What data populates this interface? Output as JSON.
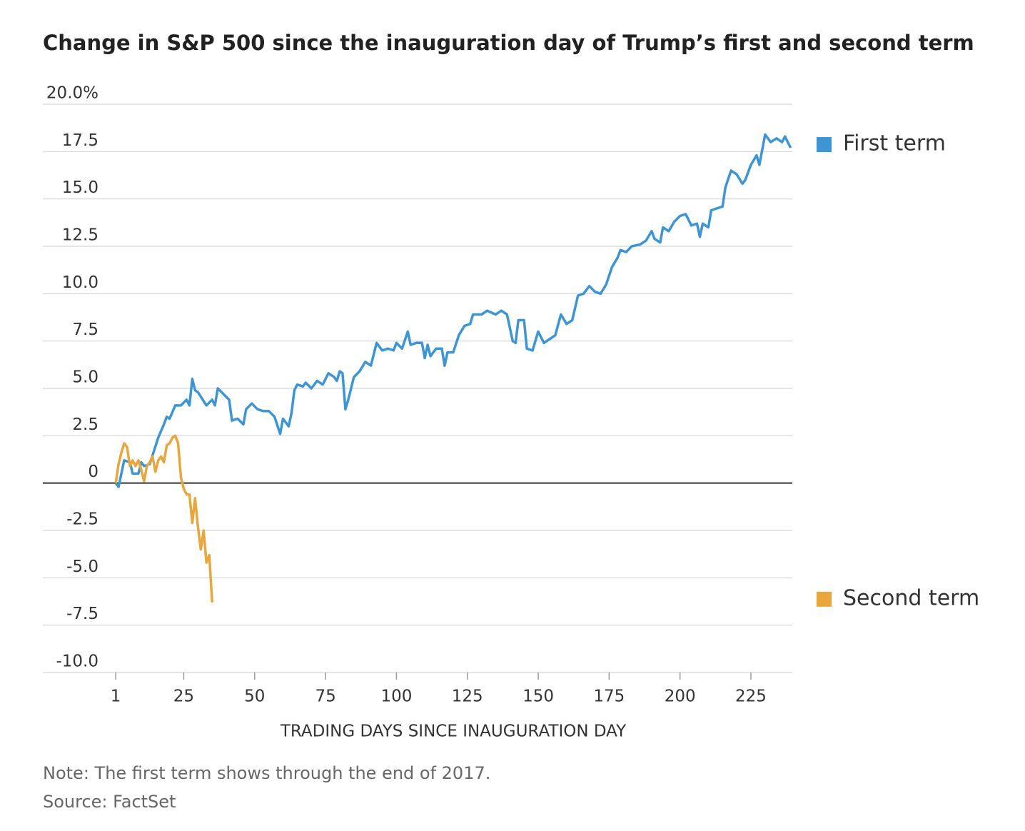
{
  "chart_data": {
    "type": "line",
    "title": "Change in S&P 500 since the inauguration day of Trump’s first and second term",
    "x_label": "TRADING DAYS SINCE INAUGURATION DAY",
    "note": "Note: The first term shows through the end of 2017.",
    "source": "Source: FactSet",
    "xlim": [
      -24.7,
      239.6
    ],
    "xticks": [
      1,
      25,
      50,
      75,
      100,
      125,
      150,
      175,
      200,
      225
    ],
    "ylim": [
      -10,
      20
    ],
    "yticks": [
      {
        "value": 20,
        "label": "20.0%"
      },
      17.5,
      {
        "value": 15,
        "label": "15.0"
      },
      12.5,
      {
        "value": 10,
        "label": "10.0"
      },
      7.5,
      {
        "value": 5,
        "label": "5.0"
      },
      2.5,
      0,
      -2.5,
      {
        "value": -5,
        "label": "-5.0"
      },
      -7.5,
      {
        "value": -10,
        "label": "-10.0"
      }
    ],
    "grid": true,
    "series": [
      {
        "name": "First term",
        "color": "#3d95d3",
        "x": [
          1,
          2,
          4,
          6,
          7,
          9,
          10,
          11,
          13,
          16,
          18,
          19,
          20,
          22,
          24,
          26,
          27,
          28,
          29,
          30,
          33,
          35,
          36,
          37,
          39,
          41,
          42,
          44,
          46,
          47,
          49,
          51,
          53,
          55,
          57,
          59,
          60,
          62,
          63,
          64,
          65,
          67,
          68,
          70,
          72,
          74,
          76,
          78,
          79,
          80,
          81,
          82,
          83,
          85,
          87,
          89,
          91,
          93,
          95,
          97,
          99,
          100,
          102,
          104,
          105,
          107,
          109,
          110,
          111,
          112,
          114,
          116,
          117,
          118,
          120,
          122,
          124,
          126,
          127,
          130,
          132,
          135,
          137,
          139,
          141,
          142,
          143,
          145,
          146,
          148,
          150,
          152,
          154,
          156,
          158,
          160,
          162,
          164,
          166,
          168,
          170,
          172,
          174,
          176,
          178,
          179,
          181,
          183,
          186,
          188,
          190,
          191,
          193,
          194,
          196,
          198,
          200,
          202,
          204,
          206,
          207,
          208,
          210,
          211,
          213,
          215,
          216,
          218,
          220,
          222,
          223,
          225,
          227,
          228,
          230,
          232,
          234,
          236,
          237,
          239
        ],
        "values": [
          0,
          -0.2,
          1.2,
          1.1,
          0.5,
          0.5,
          1.1,
          0.9,
          1.0,
          2.4,
          3.1,
          3.5,
          3.4,
          4.1,
          4.1,
          4.4,
          4.1,
          5.5,
          4.9,
          4.8,
          4.1,
          4.4,
          4.1,
          5.0,
          4.7,
          4.4,
          3.3,
          3.4,
          3.1,
          3.9,
          4.2,
          3.9,
          3.8,
          3.8,
          3.5,
          2.6,
          3.4,
          3.0,
          3.7,
          4.9,
          5.2,
          5.1,
          5.3,
          5.0,
          5.4,
          5.2,
          5.8,
          5.6,
          5.4,
          5.9,
          5.8,
          3.9,
          4.4,
          5.6,
          5.9,
          6.4,
          6.2,
          7.4,
          7.0,
          7.1,
          7.0,
          7.4,
          7.1,
          8.0,
          7.3,
          7.4,
          7.4,
          6.6,
          7.3,
          6.7,
          7.1,
          7.1,
          6.2,
          6.9,
          6.9,
          7.8,
          8.3,
          8.4,
          8.9,
          8.9,
          9.1,
          8.9,
          9.1,
          8.9,
          7.5,
          7.4,
          8.6,
          8.6,
          7.1,
          7.0,
          8.0,
          7.4,
          7.6,
          7.8,
          8.9,
          8.4,
          8.6,
          9.9,
          10.0,
          10.4,
          10.1,
          10.0,
          10.5,
          11.4,
          11.9,
          12.3,
          12.2,
          12.5,
          12.6,
          12.8,
          13.3,
          12.9,
          12.7,
          13.5,
          13.3,
          13.8,
          14.1,
          14.2,
          13.6,
          13.7,
          13.0,
          13.7,
          13.5,
          14.4,
          14.5,
          14.6,
          15.6,
          16.5,
          16.3,
          15.8,
          16.0,
          16.8,
          17.3,
          16.8,
          18.4,
          18.0,
          18.2,
          18.0,
          18.3,
          17.7
        ]
      },
      {
        "name": "Second term",
        "color": "#e8a63c",
        "x": [
          1,
          2,
          3,
          4,
          5,
          6,
          7,
          8,
          9,
          10,
          11,
          12,
          13,
          14,
          15,
          16,
          17,
          18,
          19,
          20,
          21,
          22,
          23,
          24,
          25,
          26,
          27,
          28,
          29,
          30,
          31,
          32,
          33,
          34,
          35
        ],
        "values": [
          0,
          1.0,
          1.6,
          2.1,
          1.9,
          0.9,
          1.2,
          0.9,
          1.2,
          0.7,
          0.1,
          0.9,
          1.1,
          1.4,
          0.6,
          1.2,
          1.4,
          1.1,
          2.0,
          2.1,
          2.4,
          2.5,
          2.1,
          0.3,
          -0.3,
          -0.6,
          -0.6,
          -2.1,
          -0.8,
          -2.3,
          -3.5,
          -2.5,
          -4.2,
          -3.8,
          -6.3
        ]
      }
    ]
  }
}
